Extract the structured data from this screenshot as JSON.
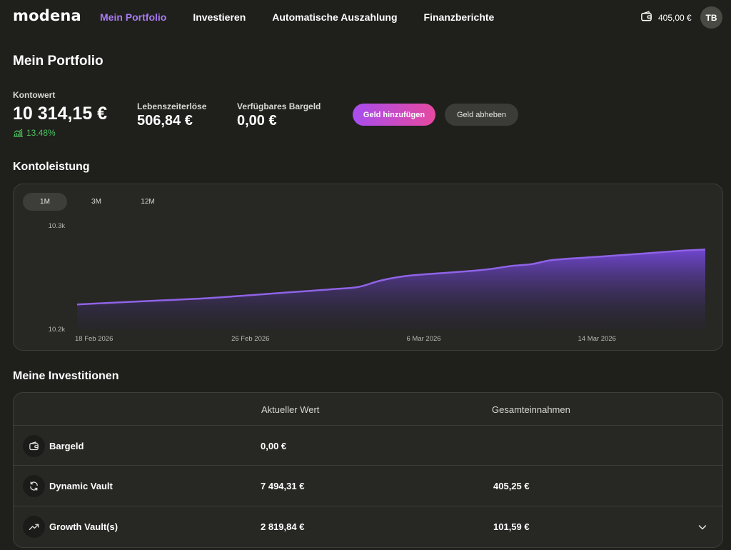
{
  "header": {
    "logo": "modena",
    "nav": [
      {
        "label": "Mein Portfolio",
        "active": true
      },
      {
        "label": "Investieren",
        "active": false
      },
      {
        "label": "Automatische Auszahlung",
        "active": false
      },
      {
        "label": "Finanzberichte",
        "active": false
      }
    ],
    "wallet_amount": "405,00 €",
    "avatar_initials": "TB"
  },
  "page_title": "Mein Portfolio",
  "summary": {
    "account_value_label": "Kontowert",
    "account_value": "10 314,15 €",
    "growth": "13.48%",
    "lifetime_label": "Lebenszeiterlöse",
    "lifetime_value": "506,84 €",
    "cash_label": "Verfügbares Bargeld",
    "cash_value": "0,00 €",
    "add_money_label": "Geld hinzufügen",
    "withdraw_label": "Geld abheben"
  },
  "performance": {
    "title": "Kontoleistung",
    "ranges": [
      {
        "label": "1M",
        "active": true
      },
      {
        "label": "3M",
        "active": false
      },
      {
        "label": "12M",
        "active": false
      }
    ]
  },
  "chart_data": {
    "type": "area",
    "ytick_labels": [
      "10.3k",
      "10.2k"
    ],
    "ytick_values": [
      10300,
      10200
    ],
    "xtick_labels": [
      "18 Feb 2026",
      "26 Feb 2026",
      "6 Mar 2026",
      "14 Mar 2026"
    ],
    "xtick_days": [
      0,
      8,
      16,
      24
    ],
    "x_range_days": [
      0,
      29
    ],
    "ylim": [
      10200,
      10300
    ],
    "points": [
      [
        0,
        10224
      ],
      [
        2,
        10226
      ],
      [
        4,
        10228
      ],
      [
        6,
        10230
      ],
      [
        8,
        10233
      ],
      [
        10,
        10236
      ],
      [
        12,
        10239
      ],
      [
        13,
        10241
      ],
      [
        14,
        10247
      ],
      [
        15,
        10251
      ],
      [
        16,
        10253
      ],
      [
        18,
        10256
      ],
      [
        19,
        10258
      ],
      [
        20,
        10261
      ],
      [
        21,
        10263
      ],
      [
        22,
        10267
      ],
      [
        24,
        10270
      ],
      [
        26,
        10273
      ],
      [
        28,
        10276
      ],
      [
        29,
        10277
      ]
    ],
    "line_color": "#8f63e6",
    "fill_color": "#6c45c7"
  },
  "investments": {
    "title": "Meine Investitionen",
    "col_value": "Aktueller Wert",
    "col_earnings": "Gesamteinnahmen",
    "rows": [
      {
        "icon": "wallet-icon",
        "name": "Bargeld",
        "value": "0,00 €",
        "earnings": ""
      },
      {
        "icon": "refresh-icon",
        "name": "Dynamic Vault",
        "value": "7 494,31 €",
        "earnings": "405,25 €"
      },
      {
        "icon": "trending-up-icon",
        "name": "Growth Vault(s)",
        "value": "2 819,84 €",
        "earnings": "101,59 €",
        "expandable": true
      }
    ]
  }
}
